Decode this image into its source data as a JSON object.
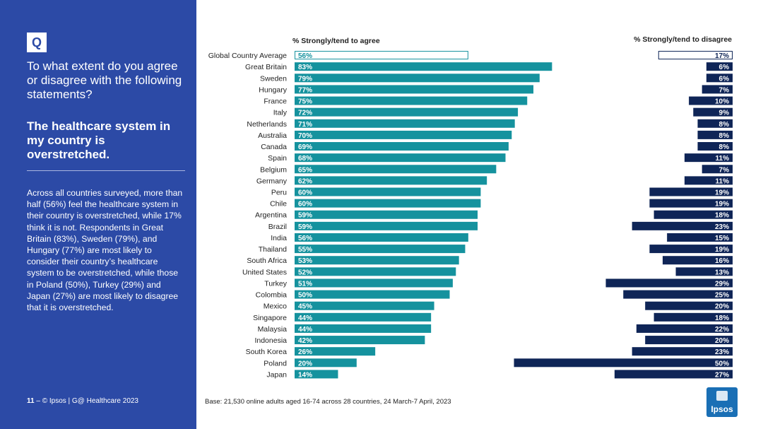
{
  "sidebar": {
    "badge": "Q",
    "question": "To what extent do you agree or disagree with the following statements?",
    "statement": "The healthcare system in my country is overstretched.",
    "summary": "Across all countries surveyed, more than half (56%) feel the healthcare system in their country is overstretched, while 17% think it is not. Respondents in Great Britain (83%), Sweden (79%), and Hungary (77%) are most likely to consider their country’s healthcare system to be overstretched, while those in Poland (50%), Turkey (29%) and Japan (27%) are most likely to disagree that it is overstretched.",
    "page_number": "11",
    "page_sep": "–",
    "footer_text": "© Ipsos | G@ Healthcare 2023"
  },
  "base_note": "Base: 21,530 online adults aged 16-74 across 28 countries, 24 March-7 April, 2023",
  "logo": {
    "text": "Ipsos"
  },
  "colors": {
    "sidebar": "#2c4aa6",
    "agree": "#15929e",
    "disagree": "#0f2557",
    "outline": "#15929e"
  },
  "chart_data": {
    "type": "bar",
    "orientation": "horizontal",
    "agree_header": "% Strongly/tend to agree",
    "disagree_header": "% Strongly/tend to disagree",
    "categories": [
      "Global Country Average",
      "Great Britain",
      "Sweden",
      "Hungary",
      "France",
      "Italy",
      "Netherlands",
      "Australia",
      "Canada",
      "Spain",
      "Belgium",
      "Germany",
      "Peru",
      "Chile",
      "Argentina",
      "Brazil",
      "India",
      "Thailand",
      "South Africa",
      "United States",
      "Turkey",
      "Colombia",
      "Mexico",
      "Singapore",
      "Malaysia",
      "Indonesia",
      "South Korea",
      "Poland",
      "Japan"
    ],
    "series": [
      {
        "name": "% Strongly/tend to agree",
        "values": [
          56,
          83,
          79,
          77,
          75,
          72,
          71,
          70,
          69,
          68,
          65,
          62,
          60,
          60,
          59,
          59,
          56,
          55,
          53,
          52,
          51,
          50,
          45,
          44,
          44,
          42,
          26,
          20,
          14
        ]
      },
      {
        "name": "% Strongly/tend to disagree",
        "values": [
          17,
          6,
          6,
          7,
          10,
          9,
          8,
          8,
          8,
          11,
          7,
          11,
          19,
          19,
          18,
          23,
          15,
          19,
          16,
          13,
          29,
          25,
          20,
          18,
          22,
          20,
          23,
          50,
          27
        ]
      }
    ],
    "highlight_first": true,
    "xlim": [
      0,
      100
    ]
  }
}
